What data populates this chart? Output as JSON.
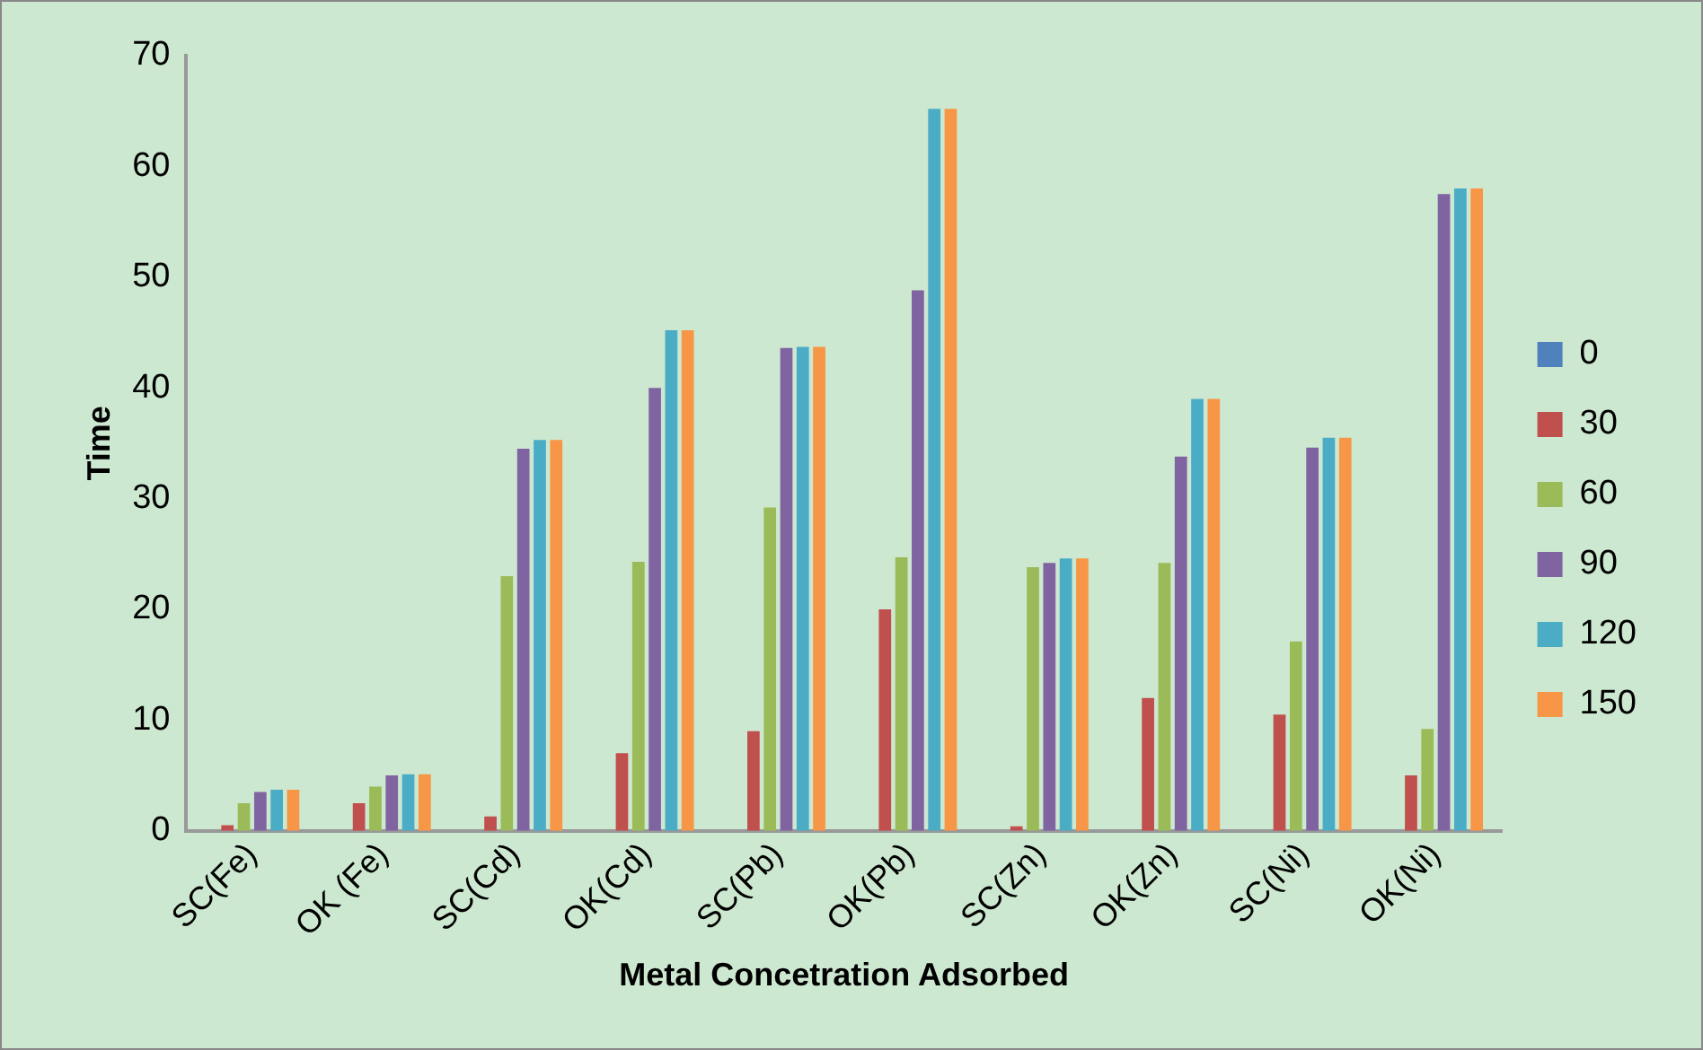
{
  "chart_data": {
    "type": "bar",
    "xlabel": "Metal Concetration Adsorbed",
    "ylabel": "Time",
    "categories": [
      "SC(Fe)",
      "OK (Fe)",
      "SC(Cd)",
      "OK(Cd)",
      "SC(Pb)",
      "OK(Pb)",
      "SC(Zn)",
      "OK(Zn)",
      "SC(Ni)",
      "OK(Ni)"
    ],
    "series": [
      {
        "name": "0",
        "color": "#4f81bd",
        "values": [
          0,
          0,
          0,
          0,
          0,
          0,
          0,
          0,
          0,
          0
        ]
      },
      {
        "name": "30",
        "color": "#c0504d",
        "values": [
          0.5,
          2.5,
          1.3,
          7,
          9,
          20,
          0.4,
          12,
          10.5,
          5
        ]
      },
      {
        "name": "60",
        "color": "#9bbb59",
        "values": [
          2.5,
          4,
          23,
          24.3,
          29.2,
          24.7,
          23.8,
          24.2,
          17.1,
          9.2
        ]
      },
      {
        "name": "90",
        "color": "#8064a2",
        "values": [
          3.5,
          5,
          34.5,
          40,
          43.6,
          48.8,
          24.2,
          33.8,
          34.6,
          57.5
        ]
      },
      {
        "name": "120",
        "color": "#4bacc6",
        "values": [
          3.7,
          5.1,
          35.3,
          45.2,
          43.7,
          65.2,
          24.6,
          39,
          35.5,
          58
        ]
      },
      {
        "name": "150",
        "color": "#f79646",
        "values": [
          3.7,
          5.1,
          35.3,
          45.2,
          43.7,
          65.2,
          24.6,
          39,
          35.5,
          58
        ]
      }
    ],
    "ylim": [
      0,
      70
    ],
    "yticks": [
      0,
      10,
      20,
      30,
      40,
      50,
      60,
      70
    ],
    "grid": false,
    "legend": "right"
  }
}
